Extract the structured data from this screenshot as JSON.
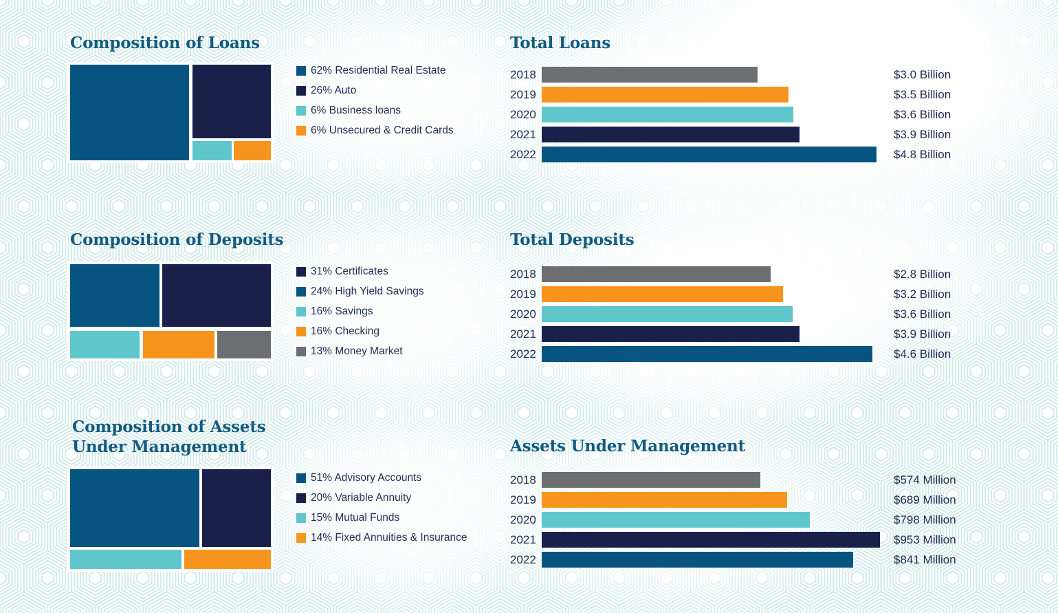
{
  "colors": {
    "blue": "#075480",
    "navy": "#1a2049",
    "teal": "#5fc6cb",
    "orange": "#f7941e",
    "gray": "#6d6e71",
    "title": "#115b82",
    "text": "#222c55",
    "pattern": "#d3eaea"
  },
  "sections": {
    "loans_composition": {
      "title": "Composition of Loans",
      "legend": [
        {
          "label": "62% Residential Real Estate",
          "color": "blue"
        },
        {
          "label": "26% Auto",
          "color": "navy"
        },
        {
          "label": "6% Business loans",
          "color": "teal"
        },
        {
          "label": "6% Unsecured & Credit Cards",
          "color": "orange"
        }
      ]
    },
    "loans_totals": {
      "title": "Total Loans",
      "rows": [
        {
          "year": "2018",
          "value": "$3.0 Billion",
          "width": "62.1%",
          "color": "gray"
        },
        {
          "year": "2019",
          "value": "$3.5 Billion",
          "width": "71.0%",
          "color": "orange"
        },
        {
          "year": "2020",
          "value": "$3.6 Billion",
          "width": "72.3%",
          "color": "teal"
        },
        {
          "year": "2021",
          "value": "$3.9 Billion",
          "width": "74.1%",
          "color": "navy"
        },
        {
          "year": "2022",
          "value": "$4.8 Billion",
          "width": "96.2%",
          "color": "blue"
        }
      ]
    },
    "deposits_composition": {
      "title": "Composition of Deposits",
      "legend": [
        {
          "label": "31% Certificates",
          "color": "navy"
        },
        {
          "label": "24% High Yield Savings",
          "color": "blue"
        },
        {
          "label": "16% Savings",
          "color": "teal"
        },
        {
          "label": "16% Checking",
          "color": "orange"
        },
        {
          "label": "13% Money Market",
          "color": "gray"
        }
      ]
    },
    "deposits_totals": {
      "title": "Total Deposits",
      "rows": [
        {
          "year": "2018",
          "value": "$2.8 Billion",
          "width": "65.8%",
          "color": "gray"
        },
        {
          "year": "2019",
          "value": "$3.2 Billion",
          "width": "69.4%",
          "color": "orange"
        },
        {
          "year": "2020",
          "value": "$3.6 Billion",
          "width": "72.1%",
          "color": "teal"
        },
        {
          "year": "2021",
          "value": "$3.9 Billion",
          "width": "74.1%",
          "color": "navy"
        },
        {
          "year": "2022",
          "value": "$4.6 Billion",
          "width": "95.1%",
          "color": "blue"
        }
      ]
    },
    "aum_composition": {
      "title_line1": "Composition of Assets",
      "title_line2": "Under Management",
      "legend": [
        {
          "label": "51% Advisory Accounts",
          "color": "blue"
        },
        {
          "label": "20% Variable Annuity",
          "color": "navy"
        },
        {
          "label": "15% Mutual Funds",
          "color": "teal"
        },
        {
          "label": "14% Fixed Annuities & Insurance",
          "color": "orange"
        }
      ]
    },
    "aum_totals": {
      "title": "Assets Under Management",
      "rows": [
        {
          "year": "2018",
          "value": "$574 Million",
          "width": "62.8%",
          "color": "gray"
        },
        {
          "year": "2019",
          "value": "$689 Million",
          "width": "70.6%",
          "color": "orange"
        },
        {
          "year": "2020",
          "value": "$798 Million",
          "width": "77.1%",
          "color": "teal"
        },
        {
          "year": "2021",
          "value": "$953 Million",
          "width": "97.2%",
          "color": "navy"
        },
        {
          "year": "2022",
          "value": "$841 Million",
          "width": "89.5%",
          "color": "blue"
        }
      ]
    }
  },
  "chart_data": [
    {
      "type": "treemap",
      "title": "Composition of Loans",
      "categories": [
        "Residential Real Estate",
        "Auto",
        "Business loans",
        "Unsecured & Credit Cards"
      ],
      "values": [
        62,
        26,
        6,
        6
      ],
      "unit": "%",
      "segment_colors": [
        "blue",
        "navy",
        "teal",
        "orange"
      ]
    },
    {
      "type": "bar",
      "orientation": "horizontal",
      "title": "Total Loans",
      "categories": [
        "2018",
        "2019",
        "2020",
        "2021",
        "2022"
      ],
      "values": [
        3.0,
        3.5,
        3.6,
        3.9,
        4.8
      ],
      "unit": "$ Billion",
      "value_labels": [
        "$3.0 Billion",
        "$3.5 Billion",
        "$3.6 Billion",
        "$3.9 Billion",
        "$4.8 Billion"
      ],
      "bar_colors": [
        "gray",
        "orange",
        "teal",
        "navy",
        "blue"
      ],
      "xlim": [
        0,
        5
      ],
      "grid": false,
      "legend_position": "none"
    },
    {
      "type": "treemap",
      "title": "Composition of Deposits",
      "categories": [
        "Certificates",
        "High Yield Savings",
        "Savings",
        "Checking",
        "Money Market"
      ],
      "values": [
        31,
        24,
        16,
        16,
        13
      ],
      "unit": "%",
      "segment_colors": [
        "navy",
        "blue",
        "teal",
        "orange",
        "gray"
      ]
    },
    {
      "type": "bar",
      "orientation": "horizontal",
      "title": "Total Deposits",
      "categories": [
        "2018",
        "2019",
        "2020",
        "2021",
        "2022"
      ],
      "values": [
        2.8,
        3.2,
        3.6,
        3.9,
        4.6
      ],
      "unit": "$ Billion",
      "value_labels": [
        "$2.8 Billion",
        "$3.2 Billion",
        "$3.6 Billion",
        "$3.9 Billion",
        "$4.6 Billion"
      ],
      "bar_colors": [
        "gray",
        "orange",
        "teal",
        "navy",
        "blue"
      ],
      "xlim": [
        0,
        5
      ],
      "grid": false,
      "legend_position": "none"
    },
    {
      "type": "treemap",
      "title": "Composition of Assets Under Management",
      "categories": [
        "Advisory Accounts",
        "Variable Annuity",
        "Mutual Funds",
        "Fixed Annuities & Insurance"
      ],
      "values": [
        51,
        20,
        15,
        14
      ],
      "unit": "%",
      "segment_colors": [
        "blue",
        "navy",
        "teal",
        "orange"
      ]
    },
    {
      "type": "bar",
      "orientation": "horizontal",
      "title": "Assets Under Management",
      "categories": [
        "2018",
        "2019",
        "2020",
        "2021",
        "2022"
      ],
      "values": [
        574,
        689,
        798,
        953,
        841
      ],
      "unit": "$ Million",
      "value_labels": [
        "$574 Million",
        "$689 Million",
        "$798 Million",
        "$953 Million",
        "$841 Million"
      ],
      "bar_colors": [
        "gray",
        "orange",
        "teal",
        "navy",
        "blue"
      ],
      "xlim": [
        0,
        1000
      ],
      "grid": false,
      "legend_position": "none"
    }
  ]
}
